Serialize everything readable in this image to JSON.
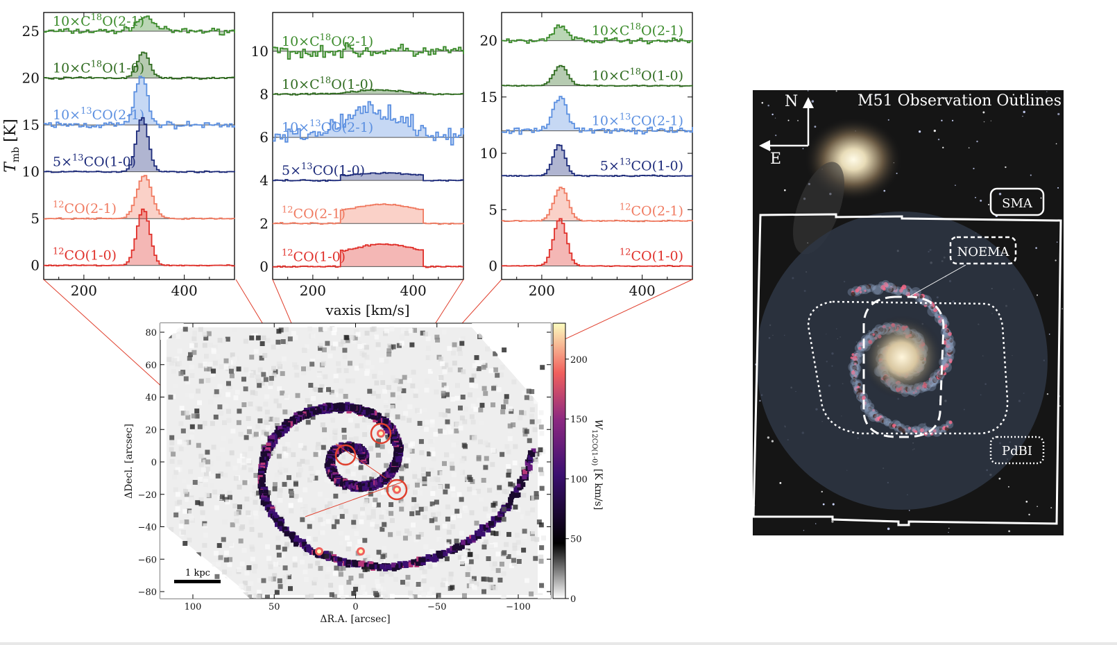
{
  "figure": {
    "spectra_ylabel": "T_mb [K]",
    "spectra_ylabel_main": "T",
    "spectra_ylabel_sub": "mb",
    "spectra_ylabel_unit": " [K]",
    "spectra_xlabel": "vaxis [km/s]",
    "panels": [
      {
        "yticks": [
          "0",
          "5",
          "10",
          "15",
          "20",
          "25"
        ],
        "xticks": [
          "200",
          "400"
        ],
        "lines": [
          {
            "text": "10×C18O(2-1)",
            "pre": "10×C",
            "sup": "18",
            "post": "O(2-1)",
            "color": "#3a8a2a",
            "offset": 25
          },
          {
            "text": "10×C18O(1-0)",
            "pre": "10×C",
            "sup": "18",
            "post": "O(1-0)",
            "color": "#2f6b1f",
            "offset": 20
          },
          {
            "text": "10×13CO(2-1)",
            "pre": "10×",
            "sup": "13",
            "post": "CO(2-1)",
            "color": "#5b8fe0",
            "offset": 15
          },
          {
            "text": "5×13CO(1-0)",
            "pre": "5×",
            "sup": "13",
            "post": "CO(1-0)",
            "color": "#1c2a7a",
            "offset": 10
          },
          {
            "text": "12CO(2-1)",
            "pre": "",
            "sup": "12",
            "post": "CO(2-1)",
            "color": "#f07a60",
            "offset": 5
          },
          {
            "text": "12CO(1-0)",
            "pre": "",
            "sup": "12",
            "post": "CO(1-0)",
            "color": "#e0302a",
            "offset": 0
          }
        ]
      },
      {
        "yticks": [
          "0",
          "2",
          "4",
          "6",
          "8",
          "10"
        ],
        "xticks": [
          "200",
          "400"
        ],
        "lines": [
          {
            "text": "10×C18O(2-1)",
            "pre": "10×C",
            "sup": "18",
            "post": "O(2-1)",
            "color": "#3a8a2a",
            "offset": 10
          },
          {
            "text": "10×C18O(1-0)",
            "pre": "10×C",
            "sup": "18",
            "post": "O(1-0)",
            "color": "#2f6b1f",
            "offset": 8
          },
          {
            "text": "10×13CO(2-1)",
            "pre": "10×",
            "sup": "13",
            "post": "CO(2-1)",
            "color": "#5b8fe0",
            "offset": 6
          },
          {
            "text": "5×13CO(1-0)",
            "pre": "5×",
            "sup": "13",
            "post": "CO(1-0)",
            "color": "#1c2a7a",
            "offset": 4
          },
          {
            "text": "12CO(2-1)",
            "pre": "",
            "sup": "12",
            "post": "CO(2-1)",
            "color": "#f07a60",
            "offset": 2
          },
          {
            "text": "12CO(1-0)",
            "pre": "",
            "sup": "12",
            "post": "CO(1-0)",
            "color": "#e0302a",
            "offset": 0
          }
        ]
      },
      {
        "yticks": [
          "0",
          "5",
          "10",
          "15",
          "20"
        ],
        "xticks": [
          "200",
          "400"
        ],
        "lines": [
          {
            "text": "10×C18O(2-1)",
            "pre": "10×C",
            "sup": "18",
            "post": "O(2-1)",
            "color": "#3a8a2a",
            "offset": 20
          },
          {
            "text": "10×C18O(1-0)",
            "pre": "10×C",
            "sup": "18",
            "post": "O(1-0)",
            "color": "#2f6b1f",
            "offset": 16
          },
          {
            "text": "10×13CO(2-1)",
            "pre": "10×",
            "sup": "13",
            "post": "CO(2-1)",
            "color": "#5b8fe0",
            "offset": 12
          },
          {
            "text": "5×13CO(1-0)",
            "pre": "5×",
            "sup": "13",
            "post": "CO(1-0)",
            "color": "#1c2a7a",
            "offset": 8
          },
          {
            "text": "12CO(2-1)",
            "pre": "",
            "sup": "12",
            "post": "CO(2-1)",
            "color": "#f07a60",
            "offset": 4
          },
          {
            "text": "12CO(1-0)",
            "pre": "",
            "sup": "12",
            "post": "CO(1-0)",
            "color": "#e0302a",
            "offset": 0
          }
        ]
      }
    ],
    "map": {
      "xlabel": "ΔR.A. [arcsec]",
      "ylabel": "ΔDecl. [arcsec]",
      "xticks": [
        "100",
        "50",
        "0",
        "−50",
        "−100"
      ],
      "yticks": [
        "80",
        "60",
        "40",
        "20",
        "0",
        "−20",
        "−40",
        "−60",
        "−80"
      ],
      "scalebar": "1 kpc",
      "colorbar_ticks": [
        "0",
        "50",
        "100",
        "150",
        "200"
      ],
      "colorbar_label": "W12CO(1-0) [K km/s]",
      "colorbar_label_main": "W",
      "colorbar_label_sub": "12CO(1-0)",
      "colorbar_label_unit": " [K km/s]"
    },
    "photo": {
      "title": "M51 Observation Outlines",
      "north": "N",
      "east": "E",
      "labels": {
        "sma": "SMA",
        "noema": "NOEMA",
        "pdbi": "PdBI"
      }
    }
  },
  "chart_data": [
    {
      "type": "line",
      "title": "",
      "xlabel": "vaxis [km/s]",
      "ylabel": "T_mb [K]",
      "xlim": [
        120,
        500
      ],
      "ylim": [
        -1.5,
        27
      ],
      "series": [
        {
          "name": "10×C18O(2-1)",
          "offset": 25,
          "peak_x": 320,
          "peak_height": 1.5,
          "width": 18
        },
        {
          "name": "10×C18O(1-0)",
          "offset": 20,
          "peak_x": 316,
          "peak_height": 2.8,
          "width": 12
        },
        {
          "name": "10×13CO(2-1)",
          "offset": 15,
          "peak_x": 312,
          "peak_height": 5.2,
          "width": 12
        },
        {
          "name": "5×13CO(1-0)",
          "offset": 10,
          "peak_x": 314,
          "peak_height": 5.8,
          "width": 12
        },
        {
          "name": "12CO(2-1)",
          "offset": 5,
          "peak_x": 318,
          "peak_height": 4.6,
          "width": 15
        },
        {
          "name": "12CO(1-0)",
          "offset": 0,
          "peak_x": 316,
          "peak_height": 6.0,
          "width": 13
        }
      ]
    },
    {
      "type": "line",
      "title": "",
      "xlabel": "vaxis [km/s]",
      "ylabel": "T_mb [K]",
      "xlim": [
        120,
        500
      ],
      "ylim": [
        -0.6,
        11.8
      ],
      "series": [
        {
          "name": "10×C18O(2-1)",
          "offset": 10,
          "peak_x": 320,
          "peak_height": 0.0,
          "width": 60
        },
        {
          "name": "10×C18O(1-0)",
          "offset": 8,
          "peak_x": 330,
          "peak_height": 0.2,
          "width": 50
        },
        {
          "name": "10×13CO(2-1)",
          "offset": 6,
          "peak_x": 320,
          "peak_height": 1.3,
          "width": 60
        },
        {
          "name": "5×13CO(1-0)",
          "offset": 4,
          "peak_x": 330,
          "peak_height": 0.35,
          "width": 55
        },
        {
          "name": "12CO(2-1)",
          "offset": 2,
          "peak_x": 330,
          "peak_height": 0.9,
          "width": 60
        },
        {
          "name": "12CO(1-0)",
          "offset": 0,
          "peak_x": 330,
          "peak_height": 1.05,
          "width": 60
        }
      ]
    },
    {
      "type": "line",
      "title": "",
      "xlabel": "vaxis [km/s]",
      "ylabel": "T_mb [K]",
      "xlim": [
        120,
        500
      ],
      "ylim": [
        -1.2,
        22.5
      ],
      "series": [
        {
          "name": "10×C18O(2-1)",
          "offset": 20,
          "peak_x": 235,
          "peak_height": 1.3,
          "width": 15
        },
        {
          "name": "10×C18O(1-0)",
          "offset": 16,
          "peak_x": 235,
          "peak_height": 1.8,
          "width": 14
        },
        {
          "name": "10×13CO(2-1)",
          "offset": 12,
          "peak_x": 235,
          "peak_height": 3.0,
          "width": 14
        },
        {
          "name": "5×13CO(1-0)",
          "offset": 8,
          "peak_x": 232,
          "peak_height": 2.8,
          "width": 12
        },
        {
          "name": "12CO(2-1)",
          "offset": 4,
          "peak_x": 236,
          "peak_height": 3.0,
          "width": 14
        },
        {
          "name": "12CO(1-0)",
          "offset": 0,
          "peak_x": 234,
          "peak_height": 4.2,
          "width": 13
        }
      ]
    },
    {
      "type": "heatmap",
      "title": "",
      "xlabel": "ΔR.A. [arcsec]",
      "ylabel": "ΔDecl. [arcsec]",
      "xlim": [
        120,
        -120
      ],
      "ylim": [
        -85,
        85
      ],
      "colorbar": {
        "label": "W12CO(1-0) [K km/s]",
        "range": [
          0,
          230
        ],
        "ticks": [
          0,
          50,
          100,
          150,
          200
        ]
      },
      "highlighted_regions": [
        {
          "ra": 5,
          "dec": 2
        },
        {
          "ra": -12,
          "dec": 18
        },
        {
          "ra": -26,
          "dec": -19
        }
      ]
    }
  ]
}
